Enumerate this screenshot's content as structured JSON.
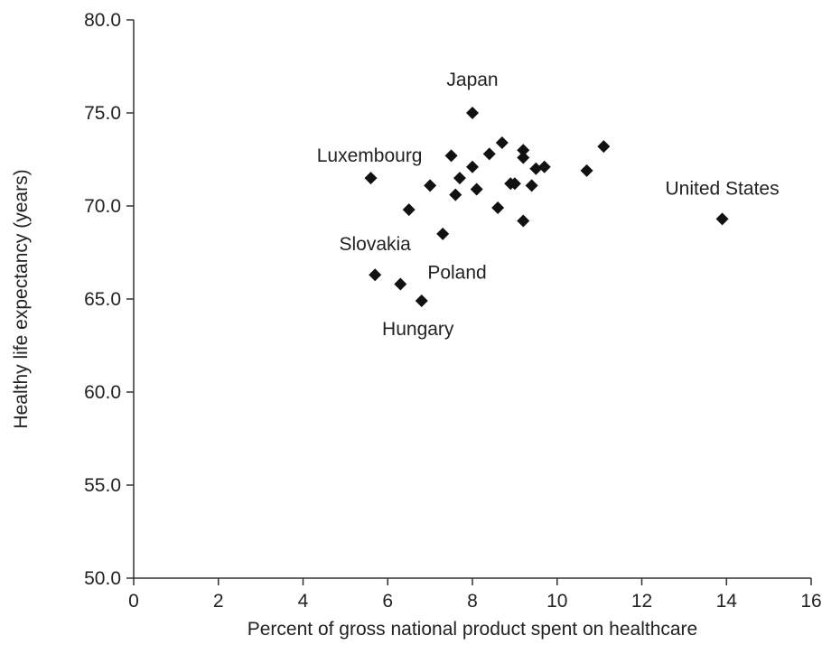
{
  "chart_data": {
    "type": "scatter",
    "title": "",
    "xlabel": "Percent of gross national product spent on healthcare",
    "ylabel": "Healthy life expectancy (years)",
    "xlim": [
      0,
      16
    ],
    "ylim": [
      50,
      80
    ],
    "grid": false,
    "x_ticks": [
      0,
      2,
      4,
      6,
      8,
      10,
      12,
      14,
      16
    ],
    "x_tick_labels": [
      "0",
      "2",
      "4",
      "6",
      "8",
      "10",
      "12",
      "14",
      "16"
    ],
    "y_ticks": [
      50,
      55,
      60,
      65,
      70,
      75,
      80
    ],
    "y_tick_labels": [
      "50.0",
      "55.0",
      "60.0",
      "65.0",
      "70.0",
      "75.0",
      "80.0"
    ],
    "points": [
      {
        "x": 8.0,
        "y": 75.0
      },
      {
        "x": 5.6,
        "y": 71.5
      },
      {
        "x": 13.9,
        "y": 69.3
      },
      {
        "x": 5.7,
        "y": 66.3
      },
      {
        "x": 6.3,
        "y": 65.8
      },
      {
        "x": 6.8,
        "y": 64.9
      },
      {
        "x": 7.3,
        "y": 68.5
      },
      {
        "x": 6.5,
        "y": 69.8
      },
      {
        "x": 7.0,
        "y": 71.1
      },
      {
        "x": 7.5,
        "y": 72.7
      },
      {
        "x": 7.6,
        "y": 70.6
      },
      {
        "x": 7.7,
        "y": 71.5
      },
      {
        "x": 8.0,
        "y": 72.1
      },
      {
        "x": 8.1,
        "y": 70.9
      },
      {
        "x": 8.4,
        "y": 72.8
      },
      {
        "x": 8.6,
        "y": 69.9
      },
      {
        "x": 8.7,
        "y": 73.4
      },
      {
        "x": 8.9,
        "y": 71.2
      },
      {
        "x": 9.0,
        "y": 71.2
      },
      {
        "x": 9.2,
        "y": 73.0
      },
      {
        "x": 9.2,
        "y": 72.6
      },
      {
        "x": 9.2,
        "y": 69.2
      },
      {
        "x": 9.4,
        "y": 71.1
      },
      {
        "x": 9.5,
        "y": 72.0
      },
      {
        "x": 9.7,
        "y": 72.1
      },
      {
        "x": 10.7,
        "y": 71.9
      },
      {
        "x": 11.1,
        "y": 73.2
      }
    ],
    "annotations": [
      {
        "label": "Japan",
        "x": 8.0,
        "y": 75.0
      },
      {
        "label": "Luxembourg",
        "x": 5.6,
        "y": 71.5
      },
      {
        "label": "United States",
        "x": 13.9,
        "y": 69.3
      },
      {
        "label": "Slovakia",
        "x": 5.7,
        "y": 66.3
      },
      {
        "label": "Poland",
        "x": 6.3,
        "y": 65.8
      },
      {
        "label": "Hungary",
        "x": 6.8,
        "y": 64.9
      }
    ]
  }
}
